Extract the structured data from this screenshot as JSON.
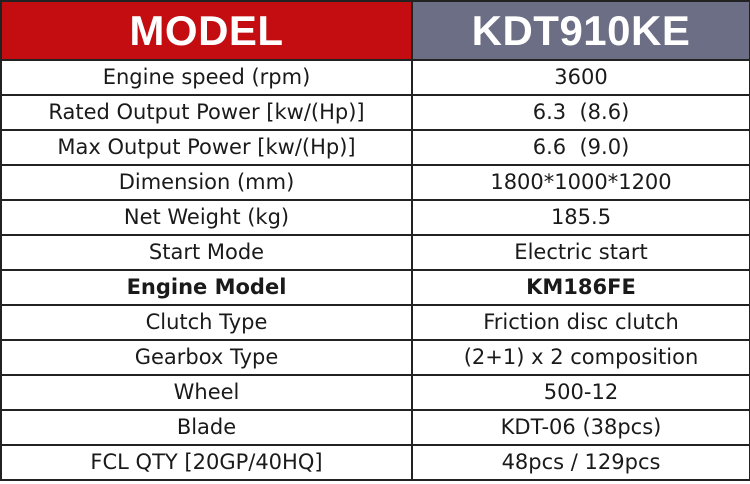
{
  "header": {
    "left": "MODEL",
    "right": "KDT910KE",
    "left_color": "#c40d11",
    "right_color": "#6c6e85"
  },
  "rows": [
    {
      "label": "Engine speed (rpm)",
      "value": "3600"
    },
    {
      "label": "Rated Output Power [kw/(Hp)]",
      "value": "6.3  (8.6)"
    },
    {
      "label": "Max Output Power [kw/(Hp)]",
      "value": "6.6  (9.0)"
    },
    {
      "label": "Dimension (mm)",
      "value": "1800*1000*1200"
    },
    {
      "label": "Net Weight (kg)",
      "value": "185.5"
    },
    {
      "label": "Start Mode",
      "value": "Electric start"
    },
    {
      "label": "Engine Model",
      "value": "KM186FE"
    },
    {
      "label": "Clutch Type",
      "value": "Friction disc clutch"
    },
    {
      "label": "Gearbox Type",
      "value": "(2+1) x 2 composition"
    },
    {
      "label": "Wheel",
      "value": "500-12"
    },
    {
      "label": "Blade",
      "value": "KDT-06 (38pcs)"
    },
    {
      "label": "FCL QTY [20GP/40HQ]",
      "value": "48pcs / 129pcs"
    }
  ]
}
